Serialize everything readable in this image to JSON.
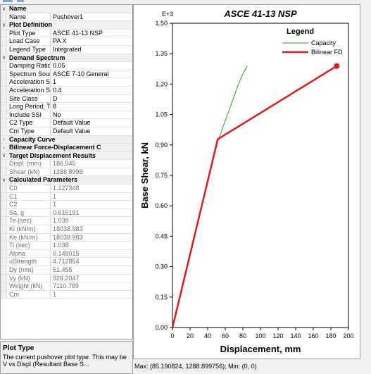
{
  "property_grid": {
    "sections": [
      {
        "title": "Name",
        "expanded": true,
        "rows": [
          {
            "k": "Name",
            "v": "Pushover1",
            "readonly": false
          }
        ]
      },
      {
        "title": "Plot Definition",
        "expanded": true,
        "rows": [
          {
            "k": "Plot Type",
            "v": "ASCE 41-13 NSP",
            "readonly": false
          },
          {
            "k": "Load Case",
            "v": "PA X",
            "readonly": false
          },
          {
            "k": "Legend Type",
            "v": "Integrated",
            "readonly": false
          }
        ]
      },
      {
        "title": "Demand Spectrum",
        "expanded": true,
        "rows": [
          {
            "k": "Damping Ratio",
            "v": "0.05",
            "readonly": false
          },
          {
            "k": "Spectrum Soun",
            "v": "ASCE 7-10 General",
            "readonly": false
          },
          {
            "k": "Acceleration Sc",
            "v": "1",
            "readonly": false
          },
          {
            "k": "Acceleration S",
            "v": "0.4",
            "readonly": false
          },
          {
            "k": "Site Class",
            "v": "D",
            "readonly": false
          },
          {
            "k": "Long Period, TI",
            "v": "8",
            "readonly": false
          },
          {
            "k": "Include SSI",
            "v": "No",
            "readonly": false
          },
          {
            "k": "C2 Type",
            "v": "Default Value",
            "readonly": false
          },
          {
            "k": "Cm Type",
            "v": "Default Value",
            "readonly": false
          }
        ]
      },
      {
        "title": "Capacity Curve",
        "expanded": false,
        "rows": []
      },
      {
        "title": "Bilinear Force-Displacement C",
        "expanded": false,
        "rows": []
      },
      {
        "title": "Target Displacement Results",
        "expanded": true,
        "rows": [
          {
            "k": "Displ. (mm)",
            "v": "186.545",
            "readonly": true
          },
          {
            "k": "Shear (kN)",
            "v": "1288.8998",
            "readonly": true
          }
        ]
      },
      {
        "title": "Calculated Parameters",
        "expanded": true,
        "rows": [
          {
            "k": "C0",
            "v": "1.127348",
            "readonly": true
          },
          {
            "k": "C1",
            "v": "1",
            "readonly": true
          },
          {
            "k": "C2",
            "v": "1",
            "readonly": true
          },
          {
            "k": "Sa, g",
            "v": "0.615191",
            "readonly": true
          },
          {
            "k": "Te (sec)",
            "v": "1.038",
            "readonly": true
          },
          {
            "k": "Ki (kN/m)",
            "v": "18038.983",
            "readonly": true
          },
          {
            "k": "Ke (kN/m)",
            "v": "18038.983",
            "readonly": true
          },
          {
            "k": "Ti (sec)",
            "v": "1.038",
            "readonly": true
          },
          {
            "k": "Alpha",
            "v": "0.148015",
            "readonly": true
          },
          {
            "k": "uStrength",
            "v": "4.712854",
            "readonly": true
          },
          {
            "k": "Dy (mm)",
            "v": "51.455",
            "readonly": true
          },
          {
            "k": "Vy (kN)",
            "v": "928.2047",
            "readonly": true
          },
          {
            "k": "Weight (kN)",
            "v": "7110.789",
            "readonly": true
          },
          {
            "k": "Cm",
            "v": "1",
            "readonly": true
          }
        ]
      }
    ]
  },
  "description": {
    "title": "Plot Type",
    "text": "The current pushover plot type.  This may be V vs Displ (Resultant Base S..."
  },
  "status_text": "Max: (85.190824, 1288.899756);  Min: (0, 0)",
  "chart_data": {
    "type": "line",
    "title": "ASCE 41-13 NSP",
    "xlabel": "Displacement, mm",
    "ylabel": "Base Shear, kN",
    "y_multiplier_label": "E+3",
    "xlim": [
      0,
      200
    ],
    "ylim": [
      0,
      1.5
    ],
    "xticks": [
      0,
      20,
      40,
      60,
      80,
      100,
      120,
      140,
      160,
      180,
      200
    ],
    "yticks": [
      "0.00",
      "0.15",
      "0.30",
      "0.45",
      "0.60",
      "0.75",
      "0.90",
      "1.05",
      "1.20",
      "1.35",
      "1.50"
    ],
    "legend_title": "Legend",
    "legend_position": "top-right",
    "series": [
      {
        "name": "Capacity",
        "color": "#2e9e2e",
        "x": [
          0,
          20,
          40,
          50,
          55,
          60,
          65,
          70,
          75,
          80,
          85
        ],
        "y": [
          0,
          0.36,
          0.72,
          0.9,
          0.96,
          1.02,
          1.08,
          1.14,
          1.2,
          1.25,
          1.29
        ]
      },
      {
        "name": "Bilinear FD",
        "color": "#e41a1a",
        "x": [
          0,
          51.455,
          186.545
        ],
        "y": [
          0,
          0.928,
          1.289
        ],
        "end_marker": true
      }
    ]
  }
}
